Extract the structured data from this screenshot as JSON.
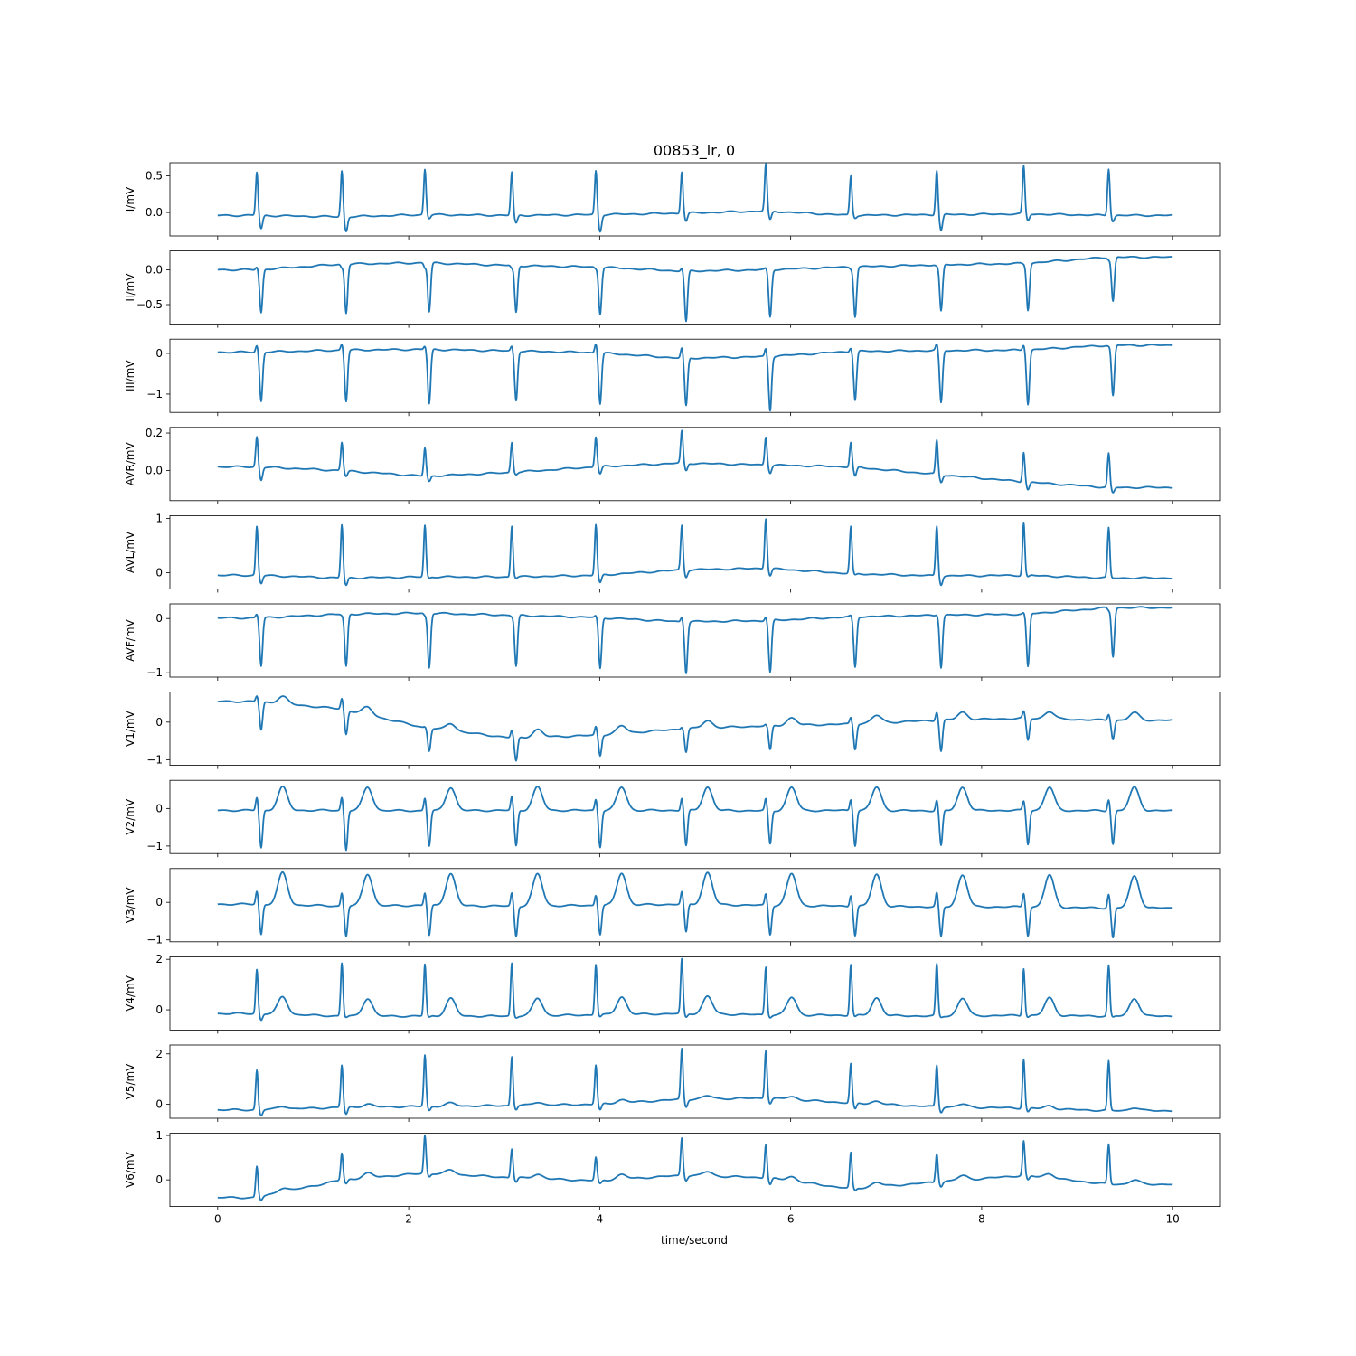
{
  "chart_data": {
    "type": "line",
    "title": "00853_lr,  0",
    "xlabel": "time/second",
    "xlim": [
      -0.5,
      10.5
    ],
    "xticks": [
      0,
      2,
      4,
      6,
      8,
      10
    ],
    "line_color": "#1f77b4",
    "grid": false,
    "beat_times": [
      0.41,
      1.3,
      2.17,
      3.08,
      3.96,
      4.86,
      5.74,
      6.63,
      7.53,
      8.44,
      9.33
    ],
    "leads": [
      {
        "name": "I/mV",
        "ylim": [
          -0.32,
          0.68
        ],
        "yticks": [
          0.0,
          0.5
        ],
        "ytick_labels": [
          "0.0",
          "0.5"
        ],
        "peaks": [
          0.55,
          0.57,
          0.59,
          0.55,
          0.57,
          0.56,
          0.66,
          0.5,
          0.58,
          0.63,
          0.6
        ],
        "troughs": [
          -0.22,
          -0.26,
          -0.08,
          -0.15,
          -0.26,
          -0.12,
          -0.1,
          -0.07,
          -0.25,
          -0.11,
          -0.12
        ],
        "baseline": [
          -0.04,
          -0.06,
          -0.03,
          -0.04,
          -0.03,
          -0.01,
          0.02,
          -0.04,
          -0.03,
          -0.02,
          -0.04
        ],
        "twave": 0.0
      },
      {
        "name": "II/mV",
        "ylim": [
          -0.78,
          0.27
        ],
        "yticks": [
          -0.5,
          0.0
        ],
        "ytick_labels": [
          "−0.5",
          "0.0"
        ],
        "peaks": [
          0.04,
          0.03,
          0.03,
          0.02,
          0.02,
          0.02,
          0.02,
          0.02,
          0.05,
          0.08,
          0.15
        ],
        "troughs": [
          -0.62,
          -0.62,
          -0.6,
          -0.61,
          -0.63,
          -0.75,
          -0.68,
          -0.67,
          -0.6,
          -0.58,
          -0.45
        ],
        "baseline": [
          0.0,
          0.08,
          0.1,
          0.06,
          0.04,
          -0.02,
          0.0,
          0.04,
          0.07,
          0.09,
          0.18
        ],
        "twave": 0.0
      },
      {
        "name": "III/mV",
        "ylim": [
          -1.45,
          0.35
        ],
        "yticks": [
          -1,
          0
        ],
        "ytick_labels": [
          "−1",
          "0"
        ],
        "peaks": [
          0.2,
          0.23,
          0.18,
          0.18,
          0.25,
          0.13,
          0.12,
          0.15,
          0.22,
          0.22,
          0.18
        ],
        "troughs": [
          -1.18,
          -1.18,
          -1.24,
          -1.15,
          -1.23,
          -1.3,
          -1.4,
          -1.15,
          -1.22,
          -1.25,
          -1.05
        ],
        "baseline": [
          0.03,
          0.08,
          0.1,
          0.06,
          0.02,
          -0.12,
          -0.08,
          0.05,
          0.07,
          0.08,
          0.2
        ],
        "twave": 0.0
      },
      {
        "name": "AVR/mV",
        "ylim": [
          -0.16,
          0.23
        ],
        "yticks": [
          0.0,
          0.2
        ],
        "ytick_labels": [
          "0.0",
          "0.2"
        ],
        "peaks": [
          0.18,
          0.15,
          0.12,
          0.15,
          0.18,
          0.21,
          0.18,
          0.15,
          0.16,
          0.1,
          0.09
        ],
        "troughs": [
          -0.05,
          -0.03,
          -0.06,
          -0.02,
          -0.02,
          0.0,
          -0.01,
          -0.03,
          -0.06,
          -0.1,
          -0.12
        ],
        "baseline": [
          0.02,
          0.0,
          -0.03,
          -0.01,
          0.02,
          0.04,
          0.03,
          0.02,
          -0.02,
          -0.06,
          -0.09
        ],
        "twave": 0.0
      },
      {
        "name": "AVL/mV",
        "ylim": [
          -0.3,
          1.05
        ],
        "yticks": [
          0,
          1
        ],
        "ytick_labels": [
          "0",
          "1"
        ],
        "peaks": [
          0.85,
          0.88,
          0.87,
          0.86,
          0.88,
          0.87,
          1.0,
          0.84,
          0.86,
          0.93,
          0.82
        ],
        "troughs": [
          -0.2,
          -0.24,
          -0.1,
          -0.1,
          -0.2,
          -0.08,
          -0.05,
          -0.05,
          -0.22,
          -0.08,
          -0.1
        ],
        "baseline": [
          -0.05,
          -0.1,
          -0.08,
          -0.08,
          -0.05,
          0.05,
          0.08,
          -0.02,
          -0.06,
          -0.05,
          -0.1
        ],
        "twave": 0.0
      },
      {
        "name": "AVF/mV",
        "ylim": [
          -1.08,
          0.27
        ],
        "yticks": [
          -1,
          0
        ],
        "ytick_labels": [
          "−1",
          "0"
        ],
        "peaks": [
          0.08,
          0.06,
          0.06,
          0.04,
          0.05,
          0.03,
          0.03,
          0.05,
          0.08,
          0.1,
          0.15
        ],
        "troughs": [
          -0.88,
          -0.88,
          -0.9,
          -0.88,
          -0.92,
          -1.0,
          -1.0,
          -0.9,
          -0.9,
          -0.9,
          -0.7
        ],
        "baseline": [
          0.01,
          0.08,
          0.1,
          0.06,
          0.02,
          -0.06,
          -0.04,
          0.03,
          0.06,
          0.08,
          0.2
        ],
        "twave": 0.0
      },
      {
        "name": "V1/mV",
        "ylim": [
          -1.15,
          0.8
        ],
        "yticks": [
          -1,
          0
        ],
        "ytick_labels": [
          "−1",
          "0"
        ],
        "peaks": [
          0.7,
          0.63,
          -0.12,
          -0.22,
          -0.12,
          -0.12,
          -0.07,
          0.12,
          0.28,
          0.28,
          0.22
        ],
        "troughs": [
          -0.2,
          -0.3,
          -0.75,
          -1.05,
          -0.9,
          -0.8,
          -0.75,
          -0.72,
          -0.78,
          -0.48,
          -0.45
        ],
        "baseline": [
          0.55,
          0.35,
          -0.15,
          -0.42,
          -0.35,
          -0.18,
          -0.1,
          -0.05,
          0.05,
          0.1,
          0.05
        ],
        "twave": 0.2
      },
      {
        "name": "V2/mV",
        "ylim": [
          -1.2,
          0.75
        ],
        "yticks": [
          -1,
          0
        ],
        "ytick_labels": [
          "−1",
          "0"
        ],
        "peaks": [
          0.3,
          0.3,
          0.28,
          0.32,
          0.25,
          0.28,
          0.25,
          0.25,
          0.22,
          0.2,
          0.25
        ],
        "troughs": [
          -1.05,
          -1.1,
          -1.0,
          -1.0,
          -1.02,
          -1.0,
          -0.95,
          -0.98,
          -1.0,
          -0.95,
          -0.95
        ],
        "baseline": [
          -0.05,
          -0.05,
          -0.06,
          -0.05,
          -0.05,
          -0.05,
          -0.06,
          -0.05,
          -0.06,
          -0.05,
          -0.06
        ],
        "twave": 0.62
      },
      {
        "name": "V3/mV",
        "ylim": [
          -1.05,
          0.9
        ],
        "yticks": [
          -1,
          0
        ],
        "ytick_labels": [
          "−1",
          "0"
        ],
        "peaks": [
          0.3,
          0.25,
          0.25,
          0.25,
          0.2,
          0.28,
          0.22,
          0.2,
          0.25,
          0.25,
          0.22
        ],
        "troughs": [
          -0.85,
          -0.9,
          -0.88,
          -0.9,
          -0.85,
          -0.8,
          -0.85,
          -0.88,
          -0.92,
          -0.88,
          -0.95
        ],
        "baseline": [
          -0.05,
          -0.1,
          -0.08,
          -0.1,
          -0.08,
          -0.05,
          -0.08,
          -0.1,
          -0.12,
          -0.12,
          -0.15
        ],
        "twave": 0.85
      },
      {
        "name": "V4/mV",
        "ylim": [
          -0.8,
          2.1
        ],
        "yticks": [
          0,
          2
        ],
        "ytick_labels": [
          "0",
          "2"
        ],
        "peaks": [
          1.6,
          1.85,
          1.8,
          1.85,
          1.8,
          2.0,
          1.7,
          1.8,
          1.8,
          1.65,
          1.75
        ],
        "troughs": [
          -0.4,
          -0.3,
          -0.3,
          -0.3,
          -0.28,
          -0.3,
          -0.28,
          -0.28,
          -0.3,
          -0.28,
          -0.3
        ],
        "baseline": [
          -0.15,
          -0.25,
          -0.25,
          -0.25,
          -0.2,
          -0.15,
          -0.2,
          -0.22,
          -0.25,
          -0.22,
          -0.25
        ],
        "twave": 0.7
      },
      {
        "name": "V5/mV",
        "ylim": [
          -0.55,
          2.35
        ],
        "yticks": [
          0,
          2
        ],
        "ytick_labels": [
          "0",
          "2"
        ],
        "peaks": [
          1.35,
          1.55,
          1.95,
          1.9,
          1.55,
          2.2,
          2.15,
          1.6,
          1.55,
          1.8,
          1.7
        ],
        "troughs": [
          -0.45,
          -0.4,
          -0.25,
          -0.2,
          -0.25,
          -0.1,
          0.05,
          -0.2,
          -0.3,
          -0.3,
          -0.25
        ],
        "baseline": [
          -0.22,
          -0.12,
          -0.08,
          -0.05,
          0.0,
          0.2,
          0.25,
          0.05,
          -0.1,
          -0.15,
          -0.25
        ],
        "twave": 0.12
      },
      {
        "name": "V6/mV",
        "ylim": [
          -0.6,
          1.05
        ],
        "yticks": [
          0,
          1
        ],
        "ytick_labels": [
          "0",
          "1"
        ],
        "peaks": [
          0.3,
          0.6,
          1.0,
          0.7,
          0.5,
          0.95,
          0.8,
          0.6,
          0.6,
          0.87,
          0.8
        ],
        "troughs": [
          -0.48,
          -0.1,
          0.08,
          -0.05,
          -0.1,
          0.0,
          -0.1,
          -0.25,
          -0.15,
          0.0,
          -0.1
        ],
        "baseline": [
          -0.4,
          0.0,
          0.15,
          0.05,
          -0.02,
          0.1,
          0.05,
          -0.2,
          -0.05,
          0.1,
          -0.1
        ],
        "twave": 0.1
      }
    ]
  }
}
